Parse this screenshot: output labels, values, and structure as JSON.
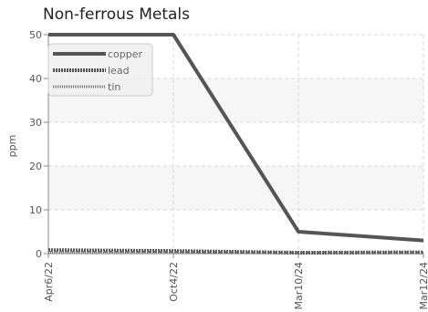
{
  "chart_data": {
    "type": "line",
    "title": "Non-ferrous Metals",
    "xlabel": "",
    "ylabel": "ppm",
    "categories": [
      "Apr6/22",
      "Oct4/22",
      "Mar10/24",
      "Mar12/24"
    ],
    "y_ticks": [
      "0",
      "10",
      "20",
      "30",
      "40",
      "50"
    ],
    "ylim": [
      0,
      50
    ],
    "grid": true,
    "legend_position": "top-left",
    "series": [
      {
        "name": "copper",
        "values": [
          50,
          50,
          5,
          3
        ],
        "color": "#555555",
        "style": "solid"
      },
      {
        "name": "lead",
        "values": [
          0.8,
          0.6,
          0.2,
          0.3
        ],
        "color": "#555555",
        "style": "dashed"
      },
      {
        "name": "tin",
        "values": [
          0.3,
          0.3,
          0.2,
          0.2
        ],
        "color": "#777777",
        "style": "dotted"
      }
    ]
  }
}
